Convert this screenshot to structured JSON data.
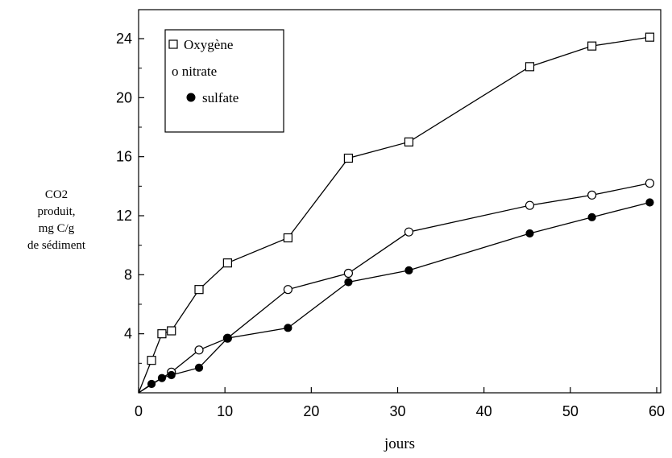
{
  "chart_data": {
    "type": "line",
    "xlabel": "jours",
    "ylabel_lines": [
      "CO2",
      "produit,",
      "mg C/g",
      "de sédiment"
    ],
    "xlim": [
      0,
      60
    ],
    "ylim": [
      0,
      26
    ],
    "xticks": [
      0,
      10,
      20,
      30,
      40,
      50,
      60
    ],
    "yticks": [
      4,
      8,
      12,
      16,
      20,
      24
    ],
    "xtick_labels": [
      "0",
      "10",
      "20",
      "30",
      "40",
      "50",
      "60"
    ],
    "ytick_labels": [
      "4",
      "8",
      "12",
      "16",
      "20",
      "24"
    ],
    "grid": false,
    "legend_position": "top-left",
    "series": [
      {
        "name": "Oxygène",
        "marker": "open-square",
        "x": [
          0,
          1.5,
          2.7,
          3.8,
          7.0,
          10.3,
          17.3,
          24.3,
          31.3,
          45.3,
          52.5,
          59.2
        ],
        "y": [
          0,
          2.2,
          4.0,
          4.2,
          7.0,
          8.8,
          10.5,
          15.9,
          17.0,
          22.1,
          23.5,
          24.1
        ]
      },
      {
        "name": "nitrate",
        "legend_label": "o nitrate",
        "marker": "open-circle",
        "x": [
          0,
          3.8,
          7.0,
          10.3,
          17.3,
          24.3,
          31.3,
          45.3,
          52.5,
          59.2
        ],
        "y": [
          0,
          1.4,
          2.9,
          3.7,
          7.0,
          8.1,
          10.9,
          12.7,
          13.4,
          14.2
        ]
      },
      {
        "name": "sulfate",
        "marker": "filled-circle",
        "x": [
          0,
          1.5,
          2.7,
          3.8,
          7.0,
          10.3,
          17.3,
          24.3,
          31.3,
          45.3,
          52.5,
          59.2
        ],
        "y": [
          0,
          0.6,
          1.0,
          1.2,
          1.7,
          3.7,
          4.4,
          7.5,
          8.3,
          10.8,
          11.9,
          12.9
        ]
      }
    ]
  }
}
